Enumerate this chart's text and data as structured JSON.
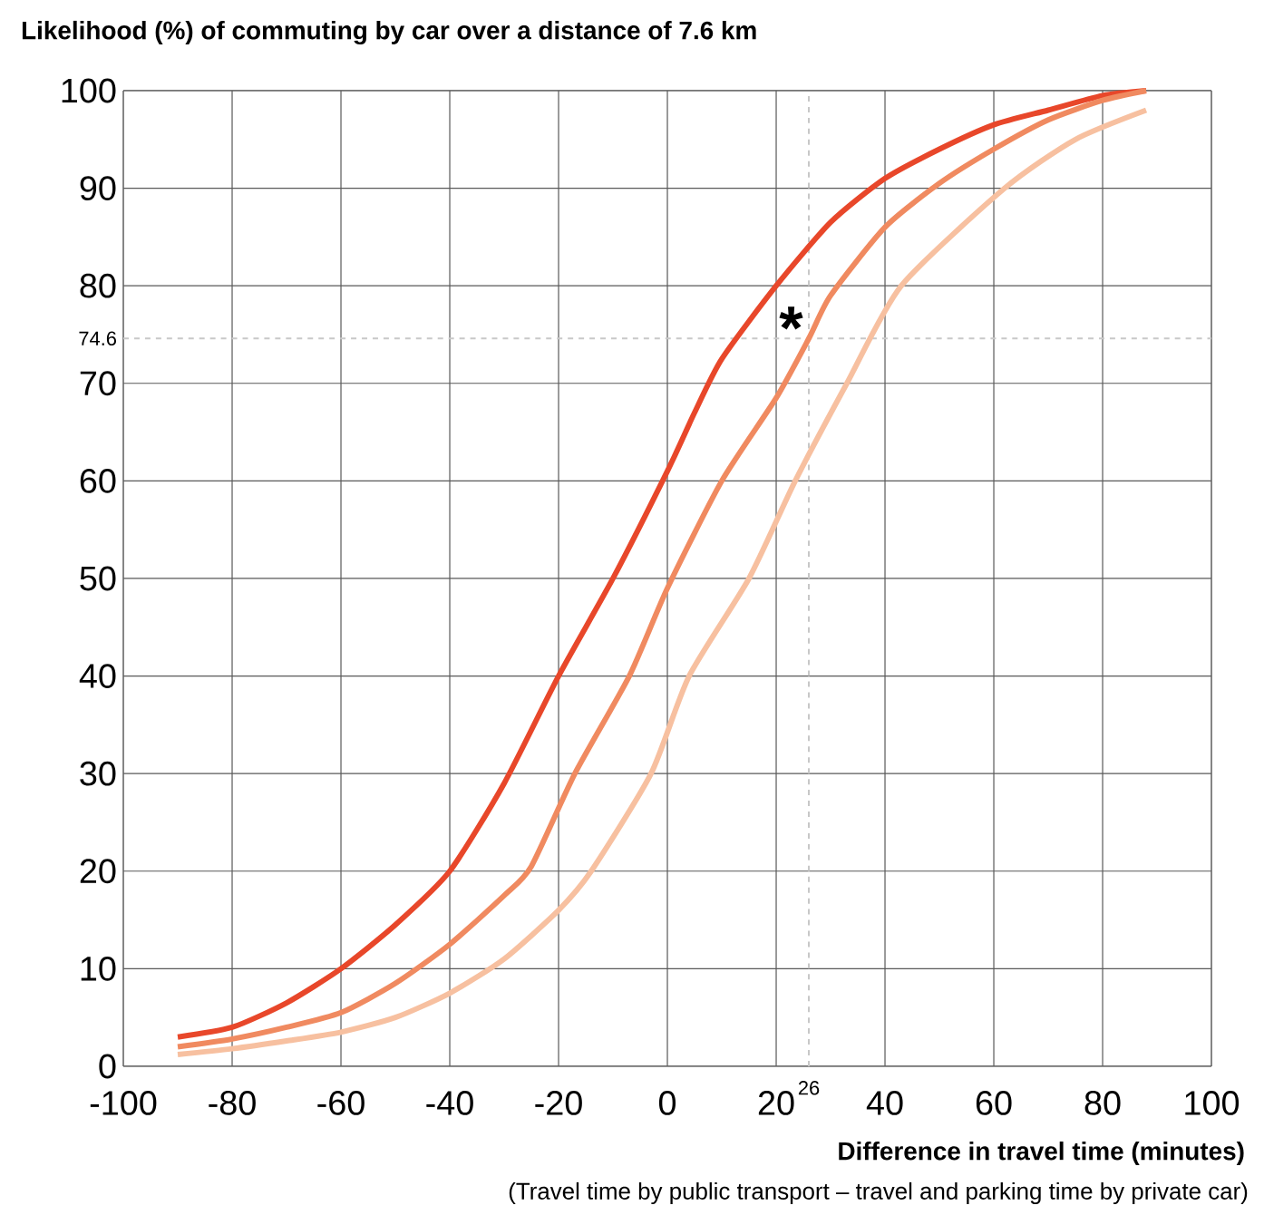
{
  "chart_data": {
    "type": "line",
    "title": "Likelihood (%) of commuting by car over a distance of 7.6 km",
    "xlabel": "Difference in travel time (minutes)",
    "annotations": [
      {
        "text": "*",
        "x": 26,
        "y": 74.6
      },
      "(Travel time by public transport – travel and parking time by private car)"
    ],
    "series": [
      {
        "color": "#e8472a",
        "x": [
          -90,
          -80,
          -70,
          -60,
          -50,
          -40,
          -30,
          -20,
          -10,
          0,
          5,
          10,
          20,
          30,
          40,
          50,
          60,
          70,
          80,
          88
        ],
        "values": [
          3,
          4,
          6.5,
          10,
          14.5,
          20,
          29,
          40,
          50,
          61,
          67,
          72.5,
          80,
          86.5,
          91,
          94,
          96.5,
          98,
          99.5,
          100
        ]
      },
      {
        "color": "#f08a60",
        "x": [
          -90,
          -80,
          -70,
          -60,
          -50,
          -40,
          -30,
          -25,
          -17,
          -7,
          0,
          10,
          20,
          26,
          30,
          40,
          50,
          60,
          70,
          80,
          88
        ],
        "values": [
          2,
          2.8,
          4,
          5.5,
          8.5,
          12.5,
          17.5,
          20.5,
          30,
          40,
          49,
          60,
          68.5,
          74.6,
          79,
          86,
          90.5,
          94,
          97,
          99,
          100
        ]
      },
      {
        "color": "#f7c0a0",
        "x": [
          -90,
          -80,
          -70,
          -60,
          -50,
          -40,
          -30,
          -20,
          -14,
          -3,
          4,
          15,
          23.5,
          33,
          43,
          62,
          75,
          88
        ],
        "values": [
          1.2,
          1.8,
          2.6,
          3.5,
          5,
          7.5,
          11,
          16,
          20,
          30,
          40,
          50,
          60,
          70,
          80,
          90,
          95,
          98
        ]
      }
    ],
    "xlim": [
      -100,
      100
    ],
    "ylim": [
      0,
      100
    ],
    "xticks": [
      -100,
      -80,
      -60,
      -40,
      -20,
      0,
      20,
      40,
      60,
      80,
      100
    ],
    "yticks": [
      0,
      10,
      20,
      30,
      40,
      50,
      60,
      70,
      80,
      90,
      100
    ],
    "grid": true,
    "marker": "none",
    "line_style": "solid",
    "ref_lines": [
      {
        "axis": "x",
        "value": 26,
        "label": "26",
        "color": "#c8c8c8",
        "line_style": "dashed"
      },
      {
        "axis": "y",
        "value": 74.6,
        "label": "74.6",
        "color": "#c8c8c8",
        "line_style": "dashed"
      }
    ]
  }
}
